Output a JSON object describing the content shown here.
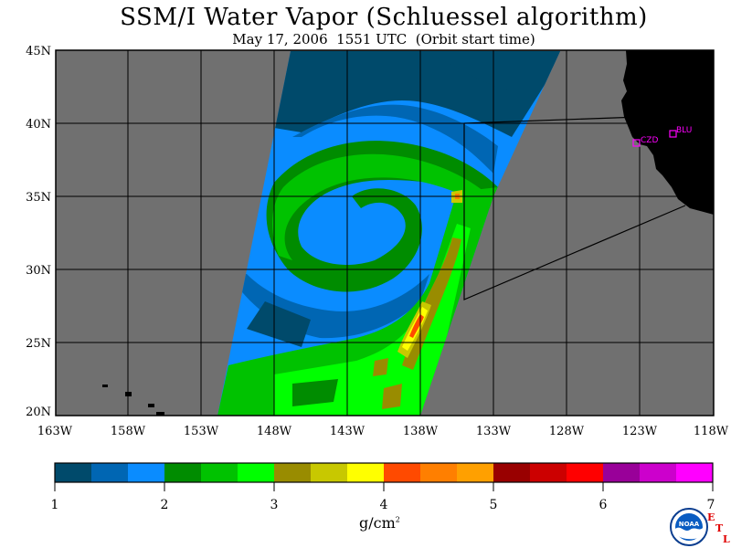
{
  "title": "SSM/I Water Vapor (Schluessel algorithm)",
  "subtitle": "May 17, 2006  1551 UTC  (Orbit start time)",
  "map": {
    "lat_labels": [
      "45N",
      "40N",
      "35N",
      "30N",
      "25N",
      "20N"
    ],
    "lon_labels": [
      "163W",
      "158W",
      "153W",
      "148W",
      "143W",
      "138W",
      "133W",
      "128W",
      "123W",
      "118W"
    ],
    "lat_range": [
      20,
      45
    ],
    "lon_range": [
      -163,
      -118
    ],
    "stations": [
      {
        "name": "CZD",
        "lat": 38.6,
        "lon": -123.2
      },
      {
        "name": "BLU",
        "lat": 39.3,
        "lon": -121.2
      }
    ],
    "colors": {
      "background": "#707070",
      "land": "#000000",
      "grid": "#000000",
      "station": "#ff00ff"
    }
  },
  "colorbar": {
    "units": "g/cm",
    "units_exponent": "2",
    "tick_labels": [
      "1",
      "2",
      "3",
      "4",
      "5",
      "6",
      "7"
    ],
    "colors": [
      "#004a6b",
      "#0066b3",
      "#0a8cff",
      "#008c00",
      "#00c200",
      "#00ff00",
      "#998c00",
      "#c8c800",
      "#ffff00",
      "#ff4a00",
      "#ff7f00",
      "#ffa000",
      "#990000",
      "#cc0000",
      "#ff0000",
      "#990099",
      "#cc00cc",
      "#ff00ff"
    ]
  },
  "logos": {
    "noaa": "NOAA",
    "etl": [
      "E",
      "T",
      "L"
    ]
  }
}
